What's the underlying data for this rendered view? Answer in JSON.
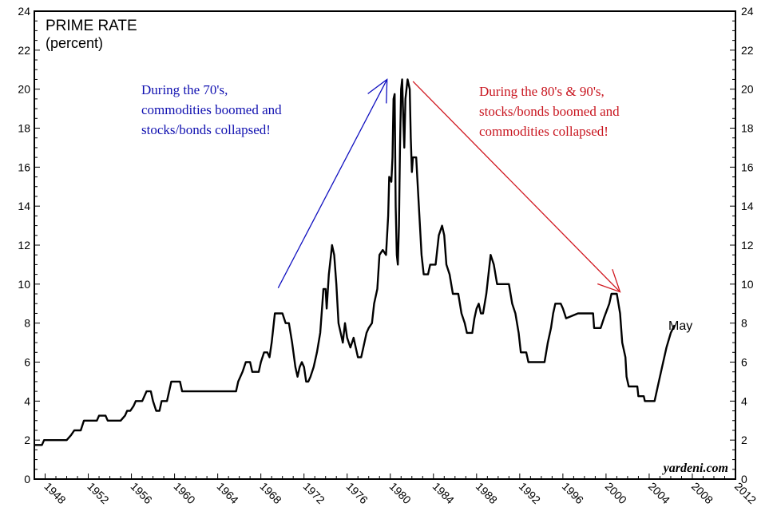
{
  "chart_data": {
    "type": "line",
    "title": "PRIME RATE",
    "subtitle": "(percent)",
    "xlabel": "",
    "ylabel": "",
    "xlim": [
      1947,
      2012
    ],
    "ylim": [
      0,
      24
    ],
    "y_ticks": [
      0,
      2,
      4,
      6,
      8,
      10,
      12,
      14,
      16,
      18,
      20,
      22,
      24
    ],
    "x_ticks": [
      1948,
      1952,
      1956,
      1960,
      1964,
      1968,
      1972,
      1976,
      1980,
      1984,
      1988,
      1992,
      1996,
      2000,
      2004,
      2008,
      2012
    ],
    "grid": false,
    "series": [
      {
        "color": "#000000",
        "points": [
          [
            1947.0,
            1.75
          ],
          [
            1947.7,
            1.75
          ],
          [
            1947.9,
            2.0
          ],
          [
            1950.0,
            2.0
          ],
          [
            1950.4,
            2.25
          ],
          [
            1950.7,
            2.5
          ],
          [
            1951.3,
            2.5
          ],
          [
            1951.6,
            3.0
          ],
          [
            1952.8,
            3.0
          ],
          [
            1953.0,
            3.25
          ],
          [
            1953.6,
            3.25
          ],
          [
            1953.8,
            3.0
          ],
          [
            1955.0,
            3.0
          ],
          [
            1955.4,
            3.25
          ],
          [
            1955.6,
            3.5
          ],
          [
            1955.9,
            3.5
          ],
          [
            1956.2,
            3.75
          ],
          [
            1956.4,
            4.0
          ],
          [
            1957.0,
            4.0
          ],
          [
            1957.4,
            4.5
          ],
          [
            1957.8,
            4.5
          ],
          [
            1958.0,
            4.0
          ],
          [
            1958.3,
            3.5
          ],
          [
            1958.6,
            3.5
          ],
          [
            1958.8,
            4.0
          ],
          [
            1959.3,
            4.0
          ],
          [
            1959.5,
            4.5
          ],
          [
            1959.7,
            5.0
          ],
          [
            1960.5,
            5.0
          ],
          [
            1960.7,
            4.5
          ],
          [
            1965.7,
            4.5
          ],
          [
            1965.9,
            5.0
          ],
          [
            1966.3,
            5.5
          ],
          [
            1966.6,
            6.0
          ],
          [
            1967.0,
            6.0
          ],
          [
            1967.2,
            5.5
          ],
          [
            1967.8,
            5.5
          ],
          [
            1968.0,
            6.0
          ],
          [
            1968.3,
            6.5
          ],
          [
            1968.6,
            6.5
          ],
          [
            1968.8,
            6.25
          ],
          [
            1969.0,
            7.0
          ],
          [
            1969.3,
            8.5
          ],
          [
            1970.0,
            8.5
          ],
          [
            1970.3,
            8.0
          ],
          [
            1970.6,
            8.0
          ],
          [
            1970.9,
            7.0
          ],
          [
            1971.2,
            5.75
          ],
          [
            1971.4,
            5.25
          ],
          [
            1971.6,
            5.75
          ],
          [
            1971.8,
            6.0
          ],
          [
            1972.0,
            5.75
          ],
          [
            1972.2,
            5.0
          ],
          [
            1972.4,
            5.0
          ],
          [
            1972.6,
            5.25
          ],
          [
            1972.9,
            5.75
          ],
          [
            1973.2,
            6.5
          ],
          [
            1973.5,
            7.5
          ],
          [
            1973.7,
            9.0
          ],
          [
            1973.8,
            9.75
          ],
          [
            1974.0,
            9.75
          ],
          [
            1974.1,
            8.75
          ],
          [
            1974.3,
            10.5
          ],
          [
            1974.5,
            11.5
          ],
          [
            1974.6,
            12.0
          ],
          [
            1974.8,
            11.5
          ],
          [
            1975.0,
            10.0
          ],
          [
            1975.2,
            8.0
          ],
          [
            1975.4,
            7.5
          ],
          [
            1975.6,
            7.0
          ],
          [
            1975.8,
            8.0
          ],
          [
            1976.0,
            7.25
          ],
          [
            1976.3,
            6.75
          ],
          [
            1976.6,
            7.25
          ],
          [
            1976.8,
            6.75
          ],
          [
            1977.0,
            6.25
          ],
          [
            1977.3,
            6.25
          ],
          [
            1977.5,
            6.75
          ],
          [
            1977.8,
            7.5
          ],
          [
            1978.0,
            7.75
          ],
          [
            1978.3,
            8.0
          ],
          [
            1978.5,
            9.0
          ],
          [
            1978.8,
            9.75
          ],
          [
            1979.0,
            11.5
          ],
          [
            1979.3,
            11.75
          ],
          [
            1979.6,
            11.5
          ],
          [
            1979.8,
            13.5
          ],
          [
            1979.9,
            15.5
          ],
          [
            1980.1,
            15.25
          ],
          [
            1980.2,
            16.5
          ],
          [
            1980.3,
            19.5
          ],
          [
            1980.4,
            19.75
          ],
          [
            1980.5,
            14.0
          ],
          [
            1980.6,
            11.5
          ],
          [
            1980.7,
            11.0
          ],
          [
            1980.8,
            13.0
          ],
          [
            1980.9,
            17.0
          ],
          [
            1981.0,
            20.0
          ],
          [
            1981.1,
            20.5
          ],
          [
            1981.2,
            18.5
          ],
          [
            1981.3,
            17.0
          ],
          [
            1981.4,
            19.5
          ],
          [
            1981.6,
            20.5
          ],
          [
            1981.8,
            20.0
          ],
          [
            1981.9,
            17.5
          ],
          [
            1982.0,
            15.75
          ],
          [
            1982.1,
            16.5
          ],
          [
            1982.4,
            16.5
          ],
          [
            1982.5,
            15.5
          ],
          [
            1982.7,
            13.5
          ],
          [
            1982.9,
            11.5
          ],
          [
            1983.1,
            10.5
          ],
          [
            1983.5,
            10.5
          ],
          [
            1983.7,
            11.0
          ],
          [
            1984.2,
            11.0
          ],
          [
            1984.5,
            12.5
          ],
          [
            1984.8,
            13.0
          ],
          [
            1985.0,
            12.5
          ],
          [
            1985.2,
            11.0
          ],
          [
            1985.5,
            10.5
          ],
          [
            1985.8,
            9.5
          ],
          [
            1986.3,
            9.5
          ],
          [
            1986.6,
            8.5
          ],
          [
            1986.9,
            8.0
          ],
          [
            1987.1,
            7.5
          ],
          [
            1987.6,
            7.5
          ],
          [
            1987.8,
            8.25
          ],
          [
            1988.0,
            8.75
          ],
          [
            1988.2,
            9.0
          ],
          [
            1988.4,
            8.5
          ],
          [
            1988.6,
            8.5
          ],
          [
            1988.9,
            9.5
          ],
          [
            1989.1,
            10.5
          ],
          [
            1989.3,
            11.5
          ],
          [
            1989.6,
            11.0
          ],
          [
            1989.9,
            10.0
          ],
          [
            1990.5,
            10.0
          ],
          [
            1991.0,
            10.0
          ],
          [
            1991.3,
            9.0
          ],
          [
            1991.6,
            8.5
          ],
          [
            1991.9,
            7.5
          ],
          [
            1992.1,
            6.5
          ],
          [
            1992.6,
            6.5
          ],
          [
            1992.8,
            6.0
          ],
          [
            1994.3,
            6.0
          ],
          [
            1994.6,
            7.0
          ],
          [
            1994.9,
            7.75
          ],
          [
            1995.1,
            8.5
          ],
          [
            1995.3,
            9.0
          ],
          [
            1995.8,
            9.0
          ],
          [
            1996.0,
            8.75
          ],
          [
            1996.3,
            8.25
          ],
          [
            1997.4,
            8.5
          ],
          [
            1998.8,
            8.5
          ],
          [
            1998.9,
            7.75
          ],
          [
            1999.5,
            7.75
          ],
          [
            1999.8,
            8.25
          ],
          [
            2000.3,
            9.0
          ],
          [
            2000.5,
            9.5
          ],
          [
            2001.0,
            9.5
          ],
          [
            2001.3,
            8.5
          ],
          [
            2001.5,
            7.0
          ],
          [
            2001.8,
            6.25
          ],
          [
            2001.9,
            5.25
          ],
          [
            2002.1,
            4.75
          ],
          [
            2002.9,
            4.75
          ],
          [
            2003.0,
            4.25
          ],
          [
            2003.5,
            4.25
          ],
          [
            2003.6,
            4.0
          ],
          [
            2004.5,
            4.0
          ],
          [
            2004.8,
            4.75
          ],
          [
            2005.2,
            5.75
          ],
          [
            2005.6,
            6.75
          ],
          [
            2006.0,
            7.5
          ],
          [
            2006.35,
            7.9
          ]
        ]
      }
    ],
    "annotations": [
      {
        "lines": [
          "During the 70's,",
          "commodities boomed and",
          "stocks/bonds collapsed!"
        ],
        "color": "#1010b0"
      },
      {
        "lines": [
          "During the 80's & 90's,",
          "stocks/bonds boomed and",
          "commodities collapsed!"
        ],
        "color": "#c8141e"
      }
    ],
    "arrows": [
      {
        "from": [
          1969.6,
          9.8
        ],
        "to": [
          1979.7,
          20.5
        ],
        "color": "#1010c0"
      },
      {
        "from": [
          1982.1,
          20.4
        ],
        "to": [
          2001.3,
          9.6
        ],
        "color": "#d01820"
      }
    ],
    "end_label": "May",
    "source": "yardeni.com"
  }
}
